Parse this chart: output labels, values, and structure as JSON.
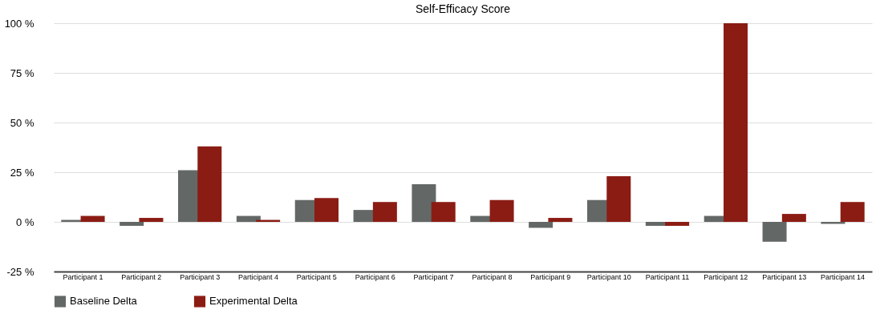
{
  "chart_data": {
    "type": "bar",
    "title": "Self-Efficacy Score",
    "categories": [
      "Participant 1",
      "Participant  2",
      "Participant  3",
      "Participant  4",
      "Participant  5",
      "Participant 6",
      "Participant 7",
      "Participant 8",
      "Participant 9",
      "Participant 10",
      "Participant 11",
      "Participant 12",
      "Participant 13",
      "Participant 14"
    ],
    "series": [
      {
        "name": "Baseline Delta",
        "color": "#636866",
        "values": [
          1,
          -2,
          26,
          3,
          11,
          6,
          19,
          3,
          -3,
          11,
          -2,
          3,
          -10,
          -1
        ]
      },
      {
        "name": "Experimental Delta",
        "color": "#8b1c14",
        "values": [
          3,
          2,
          38,
          1,
          12,
          10,
          10,
          11,
          2,
          23,
          -2,
          100,
          4,
          10
        ]
      }
    ],
    "ylim": [
      -25,
      100
    ],
    "yticks": [
      {
        "value": -25,
        "label": "-25 %"
      },
      {
        "value": 0,
        "label": "0 %"
      },
      {
        "value": 25,
        "label": "25 %"
      },
      {
        "value": 50,
        "label": "50 %"
      },
      {
        "value": 75,
        "label": "75 %"
      },
      {
        "value": 100,
        "label": "100 %"
      }
    ],
    "grid": "y",
    "legend": "bottom"
  }
}
